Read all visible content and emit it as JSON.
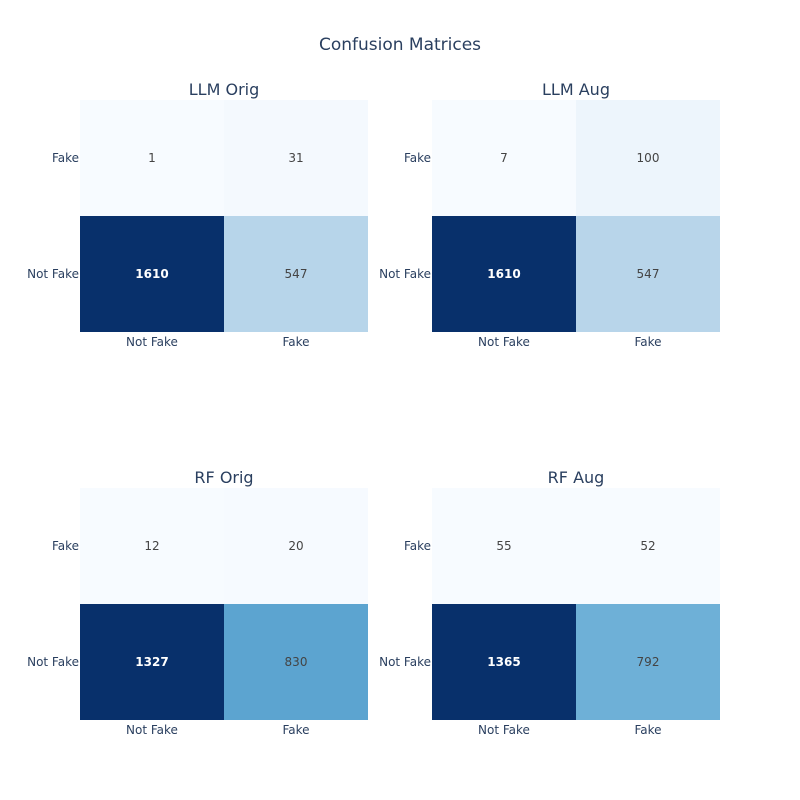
{
  "chart_data": {
    "type": "heatmap",
    "title": "Confusion Matrices",
    "colorscale": [
      "#f7fbff",
      "#deebf7",
      "#c6dbef",
      "#9ecae1",
      "#6baed6",
      "#4292c6",
      "#2171b5",
      "#08306b"
    ],
    "panels": [
      {
        "title": "LLM Orig",
        "x_categories": [
          "Not Fake",
          "Fake"
        ],
        "y_categories": [
          "Not Fake",
          "Fake"
        ],
        "z": [
          [
            1610,
            547
          ],
          [
            1,
            31
          ]
        ]
      },
      {
        "title": "LLM Aug",
        "x_categories": [
          "Not Fake",
          "Fake"
        ],
        "y_categories": [
          "Not Fake",
          "Fake"
        ],
        "z": [
          [
            1610,
            547
          ],
          [
            7,
            100
          ]
        ]
      },
      {
        "title": "RF Orig",
        "x_categories": [
          "Not Fake",
          "Fake"
        ],
        "y_categories": [
          "Not Fake",
          "Fake"
        ],
        "z": [
          [
            1327,
            830
          ],
          [
            12,
            20
          ]
        ]
      },
      {
        "title": "RF Aug",
        "x_categories": [
          "Not Fake",
          "Fake"
        ],
        "y_categories": [
          "Not Fake",
          "Fake"
        ],
        "z": [
          [
            1365,
            792
          ],
          [
            55,
            52
          ]
        ]
      }
    ]
  }
}
